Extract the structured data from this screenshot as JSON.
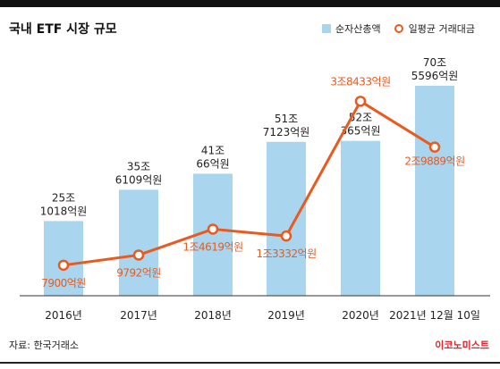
{
  "title": "국내 ETF 시장 규모",
  "source": "자료: 한국거래소",
  "brand": "이코노미스트",
  "legend": {
    "bar_label": "순자산총액",
    "line_label": "일평균 거래대금"
  },
  "colors": {
    "bar": "#a9d5ef",
    "line": "#ea5a1e",
    "bar_label_text": "#222222",
    "line_label_text": "#ea5a1e"
  },
  "chart_data": {
    "type": "bar",
    "categories": [
      "2016년",
      "2017년",
      "2018년",
      "2019년",
      "2020년",
      "2021년 12월 10일"
    ],
    "series": [
      {
        "name": "순자산총액",
        "type": "bar",
        "unit": "억원",
        "values": [
          251018,
          356109,
          410066,
          517123,
          520365,
          705596
        ],
        "labels": [
          [
            "25조",
            "1018억원"
          ],
          [
            "35조",
            "6109억원"
          ],
          [
            "41조",
            "66억원"
          ],
          [
            "51조",
            "7123억원"
          ],
          [
            "52조",
            "365억원"
          ],
          [
            "70조",
            "5596억원"
          ]
        ]
      },
      {
        "name": "일평균 거래대금",
        "type": "line",
        "unit": "억원",
        "values": [
          7900,
          9792,
          14619,
          13332,
          38433,
          29889
        ],
        "labels": [
          "7900억원",
          "9792억원",
          "1조4619억원",
          "1조3332억원",
          "3조8433억원",
          "2조9889억원"
        ]
      }
    ]
  }
}
